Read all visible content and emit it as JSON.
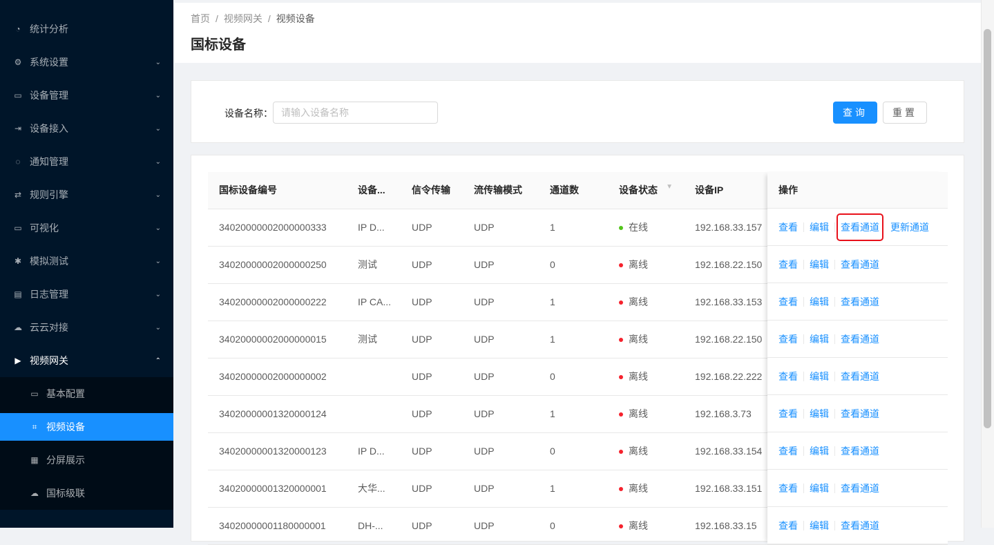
{
  "sidebar": {
    "items": [
      {
        "label": "统计分析",
        "icon": "dashboard-icon",
        "icon_glyph": "◔",
        "arrow": ""
      },
      {
        "label": "系统设置",
        "icon": "gear-icon",
        "icon_glyph": "⚙",
        "arrow": "⌄"
      },
      {
        "label": "设备管理",
        "icon": "device-icon",
        "icon_glyph": "▭",
        "arrow": "⌄"
      },
      {
        "label": "设备接入",
        "icon": "login-icon",
        "icon_glyph": "⇥",
        "arrow": "⌄"
      },
      {
        "label": "通知管理",
        "icon": "message-icon",
        "icon_glyph": "◌",
        "arrow": "⌄"
      },
      {
        "label": "规则引擎",
        "icon": "swap-icon",
        "icon_glyph": "⇄",
        "arrow": "⌄"
      },
      {
        "label": "可视化",
        "icon": "desktop-icon",
        "icon_glyph": "▭",
        "arrow": "⌄"
      },
      {
        "label": "模拟测试",
        "icon": "bug-icon",
        "icon_glyph": "✱",
        "arrow": "⌄"
      },
      {
        "label": "日志管理",
        "icon": "calendar-icon",
        "icon_glyph": "▤",
        "arrow": "⌄"
      },
      {
        "label": "云云对接",
        "icon": "cloud-icon",
        "icon_glyph": "☁",
        "arrow": "⌄"
      },
      {
        "label": "视频网关",
        "icon": "video-icon",
        "icon_glyph": "▶",
        "arrow": "⌃"
      }
    ],
    "subitems": [
      {
        "label": "基本配置",
        "icon": "video-camera-icon",
        "icon_glyph": "▭"
      },
      {
        "label": "视频设备",
        "icon": "border-icon",
        "icon_glyph": "⌗",
        "active": true
      },
      {
        "label": "分屏展示",
        "icon": "appstore-icon",
        "icon_glyph": "▦"
      },
      {
        "label": "国标级联",
        "icon": "cloud-upload-icon",
        "icon_glyph": "☁"
      }
    ]
  },
  "header": {
    "breadcrumb": [
      "首页",
      "视频网关",
      "视频设备"
    ],
    "separator": "/",
    "title": "国标设备"
  },
  "search": {
    "label": "设备名称：",
    "placeholder": "请输入设备名称",
    "query_label": "查询",
    "reset_label": "重置"
  },
  "colors": {
    "primary": "#1890ff",
    "online": "#52c41a",
    "offline": "#f5222d",
    "sidebar": "#001529",
    "highlight": "#e8101a"
  },
  "table": {
    "columns": [
      "国标设备编号",
      "设备...",
      "信令传输",
      "流传输模式",
      "通道数",
      "设备状态",
      "设备IP",
      "操作"
    ],
    "actions": {
      "view": "查看",
      "edit": "编辑",
      "channels": "查看通道",
      "update": "更新通道"
    },
    "rows": [
      {
        "id": "34020000002000000333",
        "name": "IP D...",
        "signal": "UDP",
        "stream": "UDP",
        "channels": "1",
        "status": "在线",
        "online": true,
        "ip": "192.168.33.157",
        "update": true
      },
      {
        "id": "34020000002000000250",
        "name": "测试",
        "signal": "UDP",
        "stream": "UDP",
        "channels": "0",
        "status": "离线",
        "online": false,
        "ip": "192.168.22.150"
      },
      {
        "id": "34020000002000000222",
        "name": "IP CA...",
        "signal": "UDP",
        "stream": "UDP",
        "channels": "1",
        "status": "离线",
        "online": false,
        "ip": "192.168.33.153"
      },
      {
        "id": "34020000002000000015",
        "name": "测试",
        "signal": "UDP",
        "stream": "UDP",
        "channels": "1",
        "status": "离线",
        "online": false,
        "ip": "192.168.22.150"
      },
      {
        "id": "34020000002000000002",
        "name": "",
        "signal": "UDP",
        "stream": "UDP",
        "channels": "0",
        "status": "离线",
        "online": false,
        "ip": "192.168.22.222"
      },
      {
        "id": "34020000001320000124",
        "name": "",
        "signal": "UDP",
        "stream": "UDP",
        "channels": "1",
        "status": "离线",
        "online": false,
        "ip": "192.168.3.73"
      },
      {
        "id": "34020000001320000123",
        "name": "IP D...",
        "signal": "UDP",
        "stream": "UDP",
        "channels": "0",
        "status": "离线",
        "online": false,
        "ip": "192.168.33.154"
      },
      {
        "id": "34020000001320000001",
        "name": "大华...",
        "signal": "UDP",
        "stream": "UDP",
        "channels": "1",
        "status": "离线",
        "online": false,
        "ip": "192.168.33.151"
      },
      {
        "id": "34020000001180000001",
        "name": "DH-...",
        "signal": "UDP",
        "stream": "UDP",
        "channels": "0",
        "status": "离线",
        "online": false,
        "ip": "192.168.33.15"
      }
    ]
  }
}
